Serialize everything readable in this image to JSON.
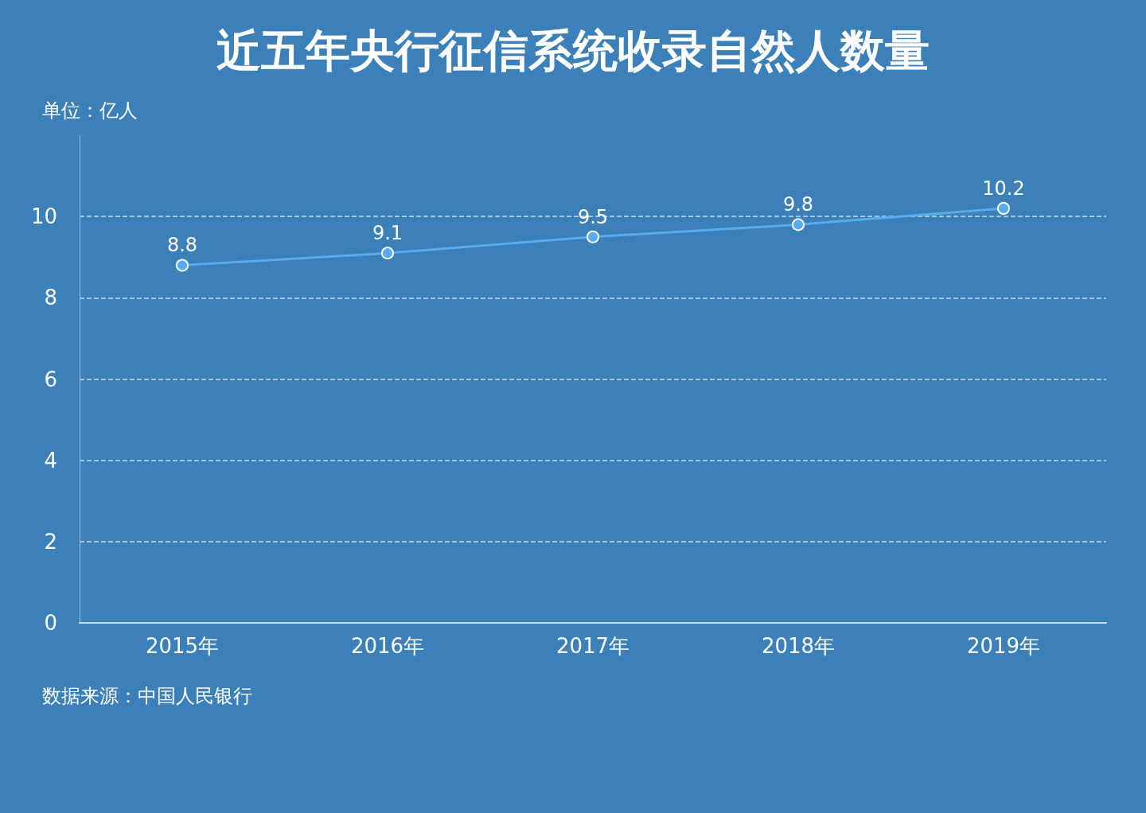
{
  "chart_data": {
    "type": "line",
    "title": "近五年央行征信系统收录自然人数量",
    "ylabel": "单位：亿人",
    "annotations": [
      "数据来源：中国人民银行"
    ],
    "categories": [
      "2015年",
      "2016年",
      "2017年",
      "2018年",
      "2019年"
    ],
    "series": [
      {
        "color": "#5aaaf0",
        "values": [
          8.8,
          9.1,
          9.5,
          9.8,
          10.2
        ]
      }
    ],
    "ylim": [
      0,
      12
    ],
    "yticks": [
      0,
      2,
      4,
      6,
      8,
      10
    ],
    "grid": "y",
    "data_labels": true,
    "marker": "circle",
    "line_style": "solid"
  }
}
